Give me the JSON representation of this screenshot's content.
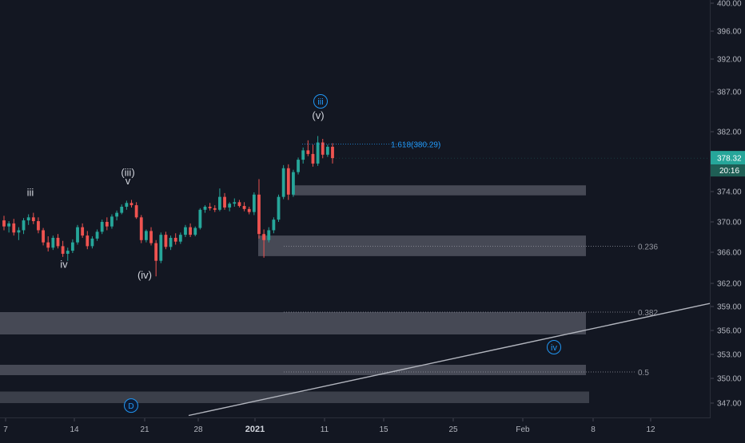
{
  "chart_data": {
    "type": "candlestick",
    "y_axis": {
      "side": "right",
      "ticks": [
        347,
        350,
        353,
        356,
        359,
        362,
        366,
        370,
        374,
        378,
        382,
        387,
        392,
        396,
        400
      ],
      "tick_labels": [
        "347.00",
        "350.00",
        "353.00",
        "356.00",
        "359.00",
        "362.00",
        "366.00",
        "370.00",
        "374.00",
        "378.00",
        "382.00",
        "387.00",
        "392.00",
        "396.00",
        "400.00"
      ]
    },
    "x_axis": {
      "ticks": [
        {
          "label": "7"
        },
        {
          "label": "14"
        },
        {
          "label": "21"
        },
        {
          "label": "28"
        },
        {
          "label": "2021",
          "bold": true
        },
        {
          "label": "11"
        },
        {
          "label": "15"
        },
        {
          "label": "25"
        },
        {
          "label": "Feb"
        },
        {
          "label": "8"
        },
        {
          "label": "12"
        }
      ]
    },
    "last_price": {
      "label": "378.32",
      "value": 378.32,
      "color": "#26a69a",
      "countdown": "20:16"
    },
    "candles": [
      [
        370.2,
        370.8,
        368.9,
        369.4
      ],
      [
        369.4,
        370.1,
        368.6,
        369.8
      ],
      [
        369.8,
        370.4,
        368.2,
        368.6
      ],
      [
        368.6,
        369.3,
        367.6,
        368.9
      ],
      [
        368.9,
        370.5,
        368.4,
        370.2
      ],
      [
        370.2,
        371.0,
        369.6,
        370.6
      ],
      [
        370.6,
        371.2,
        369.7,
        370.1
      ],
      [
        370.1,
        370.6,
        368.5,
        368.9
      ],
      [
        368.9,
        369.2,
        366.9,
        367.3
      ],
      [
        367.3,
        368.1,
        366.1,
        366.6
      ],
      [
        366.6,
        368.2,
        366.3,
        367.9
      ],
      [
        367.9,
        368.4,
        366.5,
        366.8
      ],
      [
        366.8,
        367.5,
        365.4,
        365.8
      ],
      [
        365.8,
        366.6,
        364.9,
        366.2
      ],
      [
        366.2,
        367.7,
        365.9,
        367.3
      ],
      [
        367.3,
        369.6,
        367.0,
        369.3
      ],
      [
        369.3,
        369.8,
        367.9,
        368.2
      ],
      [
        368.2,
        368.8,
        366.4,
        366.8
      ],
      [
        366.8,
        368.1,
        366.5,
        367.8
      ],
      [
        367.8,
        369.0,
        367.5,
        368.7
      ],
      [
        368.7,
        370.3,
        368.4,
        370.0
      ],
      [
        370.0,
        370.6,
        368.9,
        369.4
      ],
      [
        369.4,
        371.0,
        369.1,
        370.7
      ],
      [
        370.7,
        371.5,
        370.2,
        371.2
      ],
      [
        371.2,
        372.3,
        371.0,
        372.0
      ],
      [
        372.0,
        372.8,
        371.6,
        372.5
      ],
      [
        372.5,
        372.9,
        371.9,
        372.2
      ],
      [
        372.2,
        372.6,
        370.4,
        370.6
      ],
      [
        370.6,
        370.9,
        367.2,
        367.6
      ],
      [
        367.6,
        369.0,
        367.3,
        368.8
      ],
      [
        368.8,
        369.3,
        366.9,
        367.2
      ],
      [
        367.2,
        367.6,
        362.9,
        364.9
      ],
      [
        364.9,
        368.6,
        364.6,
        368.3
      ],
      [
        368.3,
        368.7,
        366.4,
        366.7
      ],
      [
        366.7,
        368.2,
        366.3,
        367.9
      ],
      [
        367.9,
        368.5,
        367.0,
        367.4
      ],
      [
        367.4,
        368.6,
        367.1,
        368.3
      ],
      [
        368.3,
        369.6,
        368.0,
        369.3
      ],
      [
        369.3,
        369.8,
        368.0,
        368.3
      ],
      [
        368.3,
        369.4,
        368.1,
        369.2
      ],
      [
        369.2,
        371.8,
        369.0,
        371.6
      ],
      [
        371.6,
        372.2,
        371.2,
        372.0
      ],
      [
        372.0,
        372.5,
        371.5,
        371.8
      ],
      [
        371.8,
        372.2,
        371.3,
        371.6
      ],
      [
        371.6,
        374.4,
        371.4,
        373.3
      ],
      [
        373.3,
        373.8,
        371.6,
        371.9
      ],
      [
        371.9,
        372.6,
        371.4,
        372.4
      ],
      [
        372.4,
        373.1,
        372.0,
        372.6
      ],
      [
        372.6,
        372.9,
        371.9,
        372.1
      ],
      [
        372.1,
        372.6,
        371.4,
        371.7
      ],
      [
        371.7,
        372.0,
        371.0,
        371.3
      ],
      [
        371.3,
        373.9,
        370.9,
        373.6
      ],
      [
        373.6,
        375.6,
        367.8,
        368.4
      ],
      [
        368.4,
        369.0,
        365.3,
        367.6
      ],
      [
        367.6,
        369.3,
        367.3,
        368.9
      ],
      [
        368.9,
        370.6,
        368.5,
        370.3
      ],
      [
        370.3,
        373.6,
        370.0,
        373.3
      ],
      [
        373.3,
        377.4,
        373.0,
        377.0
      ],
      [
        377.0,
        377.5,
        372.9,
        373.6
      ],
      [
        373.6,
        376.8,
        373.3,
        376.5
      ],
      [
        376.5,
        378.4,
        376.2,
        378.1
      ],
      [
        378.1,
        379.8,
        377.6,
        379.4
      ],
      [
        379.4,
        380.8,
        378.6,
        378.9
      ],
      [
        378.9,
        380.2,
        377.2,
        377.6
      ],
      [
        377.6,
        381.4,
        377.3,
        380.5
      ],
      [
        380.5,
        381.0,
        378.3,
        378.8
      ],
      [
        378.8,
        380.2,
        378.5,
        379.9
      ],
      [
        379.9,
        380.4,
        377.6,
        378.32
      ]
    ],
    "zones": [
      {
        "x1": 366,
        "x2": 733,
        "y1": 373.5,
        "y2": 374.8,
        "style": "solid"
      },
      {
        "x1": 323,
        "x2": 733,
        "y1": 365.5,
        "y2": 368.2,
        "style": "solid"
      },
      {
        "x1": 0,
        "x2": 733,
        "y1": 355.5,
        "y2": 358.3,
        "style": "solid"
      },
      {
        "x1": 0,
        "x2": 733,
        "y1": 350.4,
        "y2": 351.7,
        "style": "solid"
      },
      {
        "x1": 0,
        "x2": 737,
        "y1": 347.0,
        "y2": 348.4,
        "style": "faint"
      }
    ],
    "fib_levels": [
      {
        "label": "0.236",
        "value": 366.8,
        "x1": 355,
        "x2": 795
      },
      {
        "label": "0.382",
        "value": 358.3,
        "x1": 355,
        "x2": 795
      },
      {
        "label": "0.5",
        "value": 350.8,
        "x1": 355,
        "x2": 795
      }
    ],
    "target_line": {
      "label": "1.618(380.29)",
      "value": 380.29,
      "x1": 378,
      "x2": 550
    },
    "trendline": {
      "from": {
        "x": 236,
        "value": 345.5
      },
      "to": {
        "x": 888,
        "value": 359.4
      }
    },
    "wave_labels": [
      {
        "text": "iii",
        "x": 38,
        "value": 373.4,
        "style": "plain"
      },
      {
        "text": "iv",
        "x": 80,
        "value": 364.0,
        "style": "plain"
      },
      {
        "text": "(iii)",
        "x": 160,
        "value": 376.0,
        "style": "plain"
      },
      {
        "text": "v",
        "x": 160,
        "value": 374.9,
        "style": "plain"
      },
      {
        "text": "(iv)",
        "x": 181,
        "value": 362.6,
        "style": "plain"
      },
      {
        "text": "(v)",
        "x": 398,
        "value": 383.6,
        "style": "plain"
      },
      {
        "text": "iii",
        "x": 401,
        "value": 385.8,
        "style": "circle"
      },
      {
        "text": "iv",
        "x": 693,
        "value": 353.9,
        "style": "circle"
      },
      {
        "text": "D",
        "x": 164,
        "value": 346.7,
        "style": "circle-filled"
      }
    ]
  },
  "colors": {
    "background": "#131722",
    "up": "#26a69a",
    "down": "#ef5350",
    "zone": "#5d606b",
    "grid_text": "#b2b5be",
    "fib_text": "#9598a1",
    "target": "#2196f3",
    "trendline": "#b2b5be"
  }
}
